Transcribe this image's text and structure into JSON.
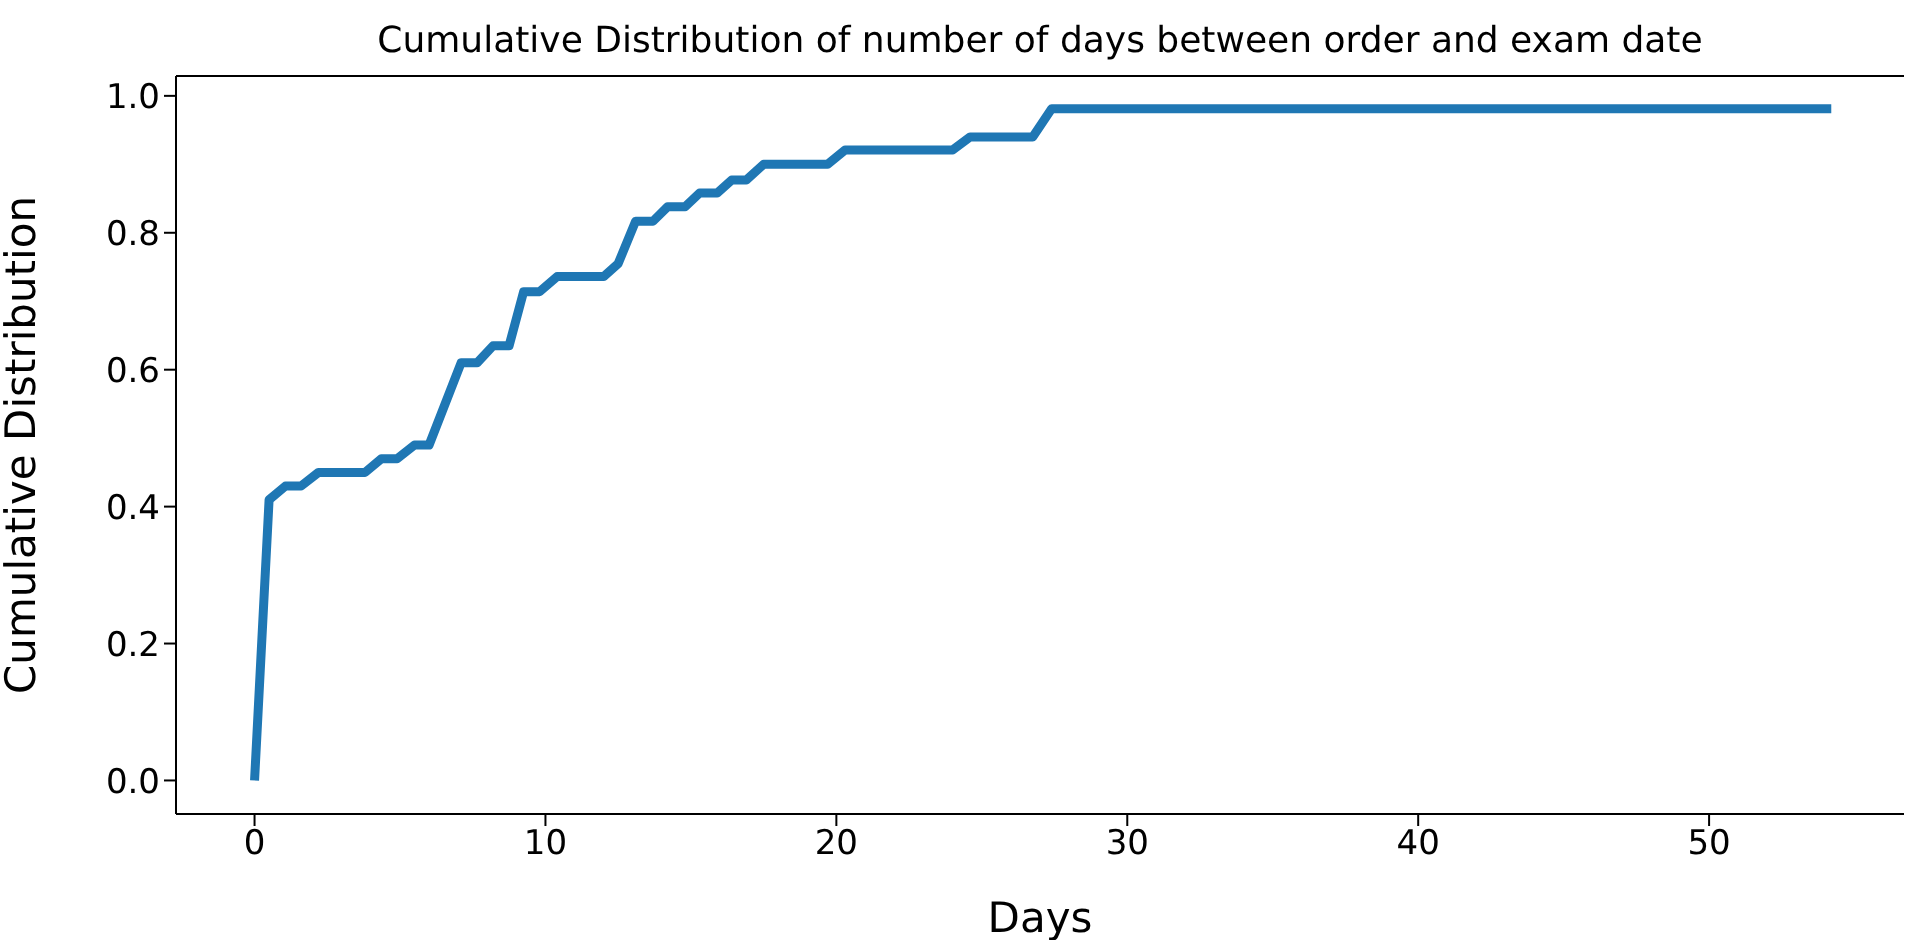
{
  "chart_data": {
    "type": "line",
    "title": "Cumulative Distribution of number of days between order and exam date",
    "xlabel": "Days",
    "ylabel": "Cumulative Distribution",
    "xlim": [
      -2.7,
      56.7
    ],
    "xticks": [
      0,
      10,
      20,
      30,
      40,
      50
    ],
    "ylim": [
      -0.049,
      1.029
    ],
    "yticks": [
      {
        "value": 0,
        "label": "0.0"
      },
      0.2,
      0.4,
      0.6,
      0.8,
      {
        "value": 1,
        "label": "1.0"
      }
    ],
    "grid": false,
    "legend": false,
    "marker": "none",
    "line_style": "solid",
    "series": [
      {
        "color": "#1f77b4",
        "x": [
          0,
          0.5,
          1.06,
          1.6,
          2.2,
          3.8,
          4.36,
          4.9,
          5.5,
          6.0,
          7.1,
          7.65,
          8.2,
          8.75,
          9.25,
          9.8,
          10.4,
          12.0,
          12.5,
          13.1,
          13.7,
          14.2,
          14.8,
          15.3,
          15.9,
          16.4,
          16.9,
          17.5,
          19.7,
          20.3,
          24.0,
          24.6,
          26.75,
          27.4,
          54.2
        ],
        "values": [
          0,
          0.41,
          0.43,
          0.43,
          0.45,
          0.45,
          0.47,
          0.47,
          0.49,
          0.49,
          0.61,
          0.61,
          0.635,
          0.635,
          0.714,
          0.714,
          0.736,
          0.736,
          0.755,
          0.817,
          0.817,
          0.838,
          0.838,
          0.858,
          0.858,
          0.877,
          0.877,
          0.9,
          0.9,
          0.921,
          0.921,
          0.94,
          0.94,
          0.981,
          0.981
        ]
      }
    ]
  }
}
